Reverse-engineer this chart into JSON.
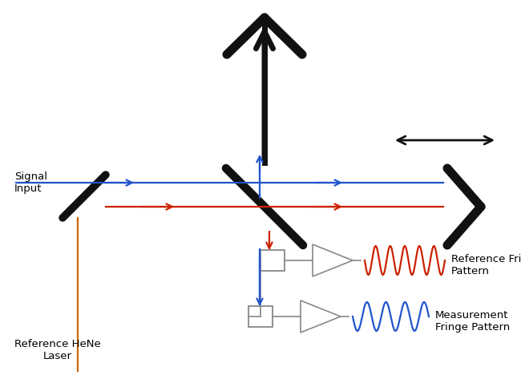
{
  "bg_color": "#ffffff",
  "red_color": "#cc2200",
  "blue_color": "#2255cc",
  "black_color": "#111111",
  "gray_color": "#888888",
  "orange_color": "#cc6600",
  "figsize": [
    6.5,
    4.73
  ],
  "dpi": 100,
  "labels": {
    "signal_input": "Signal\nInput",
    "reference_laser": "Reference HeNe\nLaser",
    "reference_fringe": "Reference Fringe\nPattern",
    "measurement_fringe": "Measurement\nFringe Pattern"
  }
}
